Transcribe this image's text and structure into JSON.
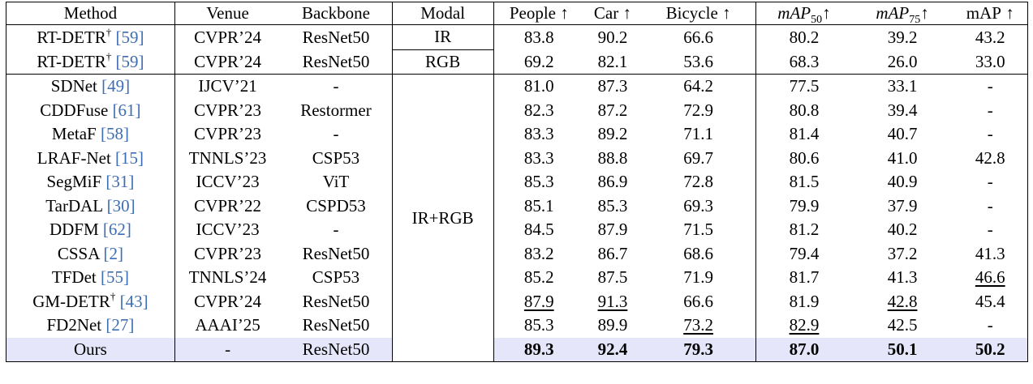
{
  "table": {
    "headers": [
      {
        "key": "method",
        "label": "Method"
      },
      {
        "key": "venue",
        "label": "Venue"
      },
      {
        "key": "backbone",
        "label": "Backbone"
      },
      {
        "key": "modal",
        "label": "Modal"
      },
      {
        "key": "people",
        "label": "People",
        "arrow": "↑"
      },
      {
        "key": "car",
        "label": "Car",
        "arrow": "↑"
      },
      {
        "key": "bicycle",
        "label": "Bicycle",
        "arrow": "↑"
      },
      {
        "key": "map50",
        "label": "mAP",
        "sub": "50",
        "arrow": "↑",
        "italic": true
      },
      {
        "key": "map75",
        "label": "mAP",
        "sub": "75",
        "arrow": "↑",
        "italic": true
      },
      {
        "key": "map",
        "label": "mAP",
        "arrow": "↑"
      }
    ],
    "modal_groups": [
      {
        "label": "IR",
        "rows": 1
      },
      {
        "label": "RGB",
        "rows": 1
      },
      {
        "label": "IR+RGB",
        "rows": 12
      }
    ],
    "highlight_color": "#e6e6fa",
    "rows": [
      {
        "method": "RT-DETR",
        "dagger": "†",
        "ref": "[59]",
        "venue": "CVPR’24",
        "backbone": "ResNet50",
        "people": "83.8",
        "car": "90.2",
        "bicycle": "66.6",
        "map50": "80.2",
        "map75": "39.2",
        "map": "43.2"
      },
      {
        "method": "RT-DETR",
        "dagger": "†",
        "ref": "[59]",
        "venue": "CVPR’24",
        "backbone": "ResNet50",
        "people": "69.2",
        "car": "82.1",
        "bicycle": "53.6",
        "map50": "68.3",
        "map75": "26.0",
        "map": "33.0"
      },
      {
        "method": "SDNet",
        "ref": "[49]",
        "venue": "IJCV’21",
        "backbone": "-",
        "people": "81.0",
        "car": "87.3",
        "bicycle": "64.2",
        "map50": "77.5",
        "map75": "33.1",
        "map": "-"
      },
      {
        "method": "CDDFuse",
        "ref": "[61]",
        "venue": "CVPR’23",
        "backbone": "Restormer",
        "people": "82.3",
        "car": "87.2",
        "bicycle": "72.9",
        "map50": "80.8",
        "map75": "39.4",
        "map": "-"
      },
      {
        "method": "MetaF",
        "ref": "[58]",
        "venue": "CVPR’23",
        "backbone": "-",
        "people": "83.3",
        "car": "89.2",
        "bicycle": "71.1",
        "map50": "81.4",
        "map75": "40.7",
        "map": "-"
      },
      {
        "method": "LRAF-Net",
        "ref": "[15]",
        "venue": "TNNLS’23",
        "backbone": "CSP53",
        "people": "83.3",
        "car": "88.8",
        "bicycle": "69.7",
        "map50": "80.6",
        "map75": "41.0",
        "map": "42.8"
      },
      {
        "method": "SegMiF",
        "ref": "[31]",
        "venue": "ICCV’23",
        "backbone": "ViT",
        "people": "85.3",
        "car": "86.9",
        "bicycle": "72.8",
        "map50": "81.5",
        "map75": "40.9",
        "map": "-"
      },
      {
        "method": "TarDAL",
        "ref": "[30]",
        "venue": "CVPR’22",
        "backbone": "CSPD53",
        "people": "85.1",
        "car": "85.3",
        "bicycle": "69.3",
        "map50": "79.9",
        "map75": "37.9",
        "map": "-"
      },
      {
        "method": "DDFM",
        "ref": "[62]",
        "venue": "ICCV’23",
        "backbone": "-",
        "people": "84.5",
        "car": "87.9",
        "bicycle": "71.5",
        "map50": "81.2",
        "map75": "40.2",
        "map": "-"
      },
      {
        "method": "CSSA",
        "ref": "[2]",
        "venue": "CVPR’23",
        "backbone": "ResNet50",
        "people": "83.2",
        "car": "86.7",
        "bicycle": "68.6",
        "map50": "79.4",
        "map75": "37.2",
        "map": "41.3"
      },
      {
        "method": "TFDet",
        "ref": "[55]",
        "venue": "TNNLS’24",
        "backbone": "CSP53",
        "people": "85.2",
        "car": "87.5",
        "bicycle": "71.9",
        "map50": "81.7",
        "map75": "41.3",
        "map": "46.6",
        "underline": [
          "map"
        ]
      },
      {
        "method": "GM-DETR",
        "dagger": "†",
        "ref": "[43]",
        "venue": "CVPR’24",
        "backbone": "ResNet50",
        "people": "87.9",
        "car": "91.3",
        "bicycle": "66.6",
        "map50": "81.9",
        "map75": "42.8",
        "map": "45.4",
        "underline": [
          "people",
          "car",
          "map75"
        ]
      },
      {
        "method": "FD2Net",
        "ref": "[27]",
        "venue": "AAAI’25",
        "backbone": "ResNet50",
        "people": "85.3",
        "car": "89.9",
        "bicycle": "73.2",
        "map50": "82.9",
        "map75": "42.5",
        "map": "-",
        "underline": [
          "bicycle",
          "map50"
        ]
      },
      {
        "method": "Ours",
        "venue": "-",
        "backbone": "ResNet50",
        "people": "89.3",
        "car": "92.4",
        "bicycle": "79.3",
        "map50": "87.0",
        "map75": "50.1",
        "map": "50.2",
        "bold": true,
        "highlight": true
      }
    ]
  }
}
